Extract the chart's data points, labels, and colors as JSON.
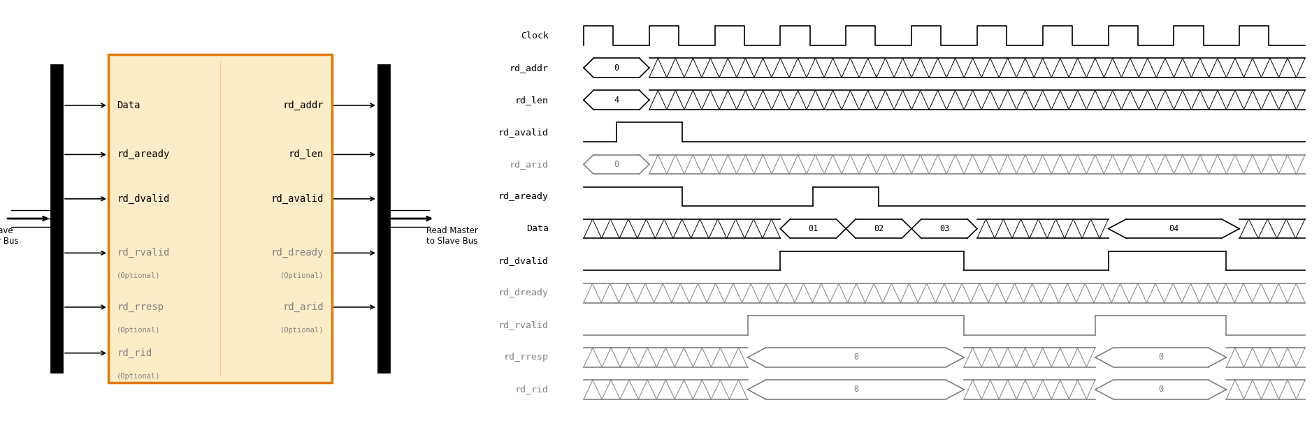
{
  "fig_width": 18.77,
  "fig_height": 6.03,
  "dpi": 100,
  "block_fill": "#FDECC8",
  "block_edge": "#E07B00",
  "background_color": "white",
  "signal_labels": [
    "Clock",
    "rd_addr",
    "rd_len",
    "rd_avalid",
    "rd_arid",
    "rd_aready",
    "Data",
    "rd_dvalid",
    "rd_dready",
    "rd_rvalid",
    "rd_rresp",
    "rd_rid"
  ],
  "signal_colors": [
    "black",
    "black",
    "black",
    "black",
    "gray",
    "black",
    "black",
    "black",
    "gray",
    "gray",
    "gray",
    "gray"
  ]
}
